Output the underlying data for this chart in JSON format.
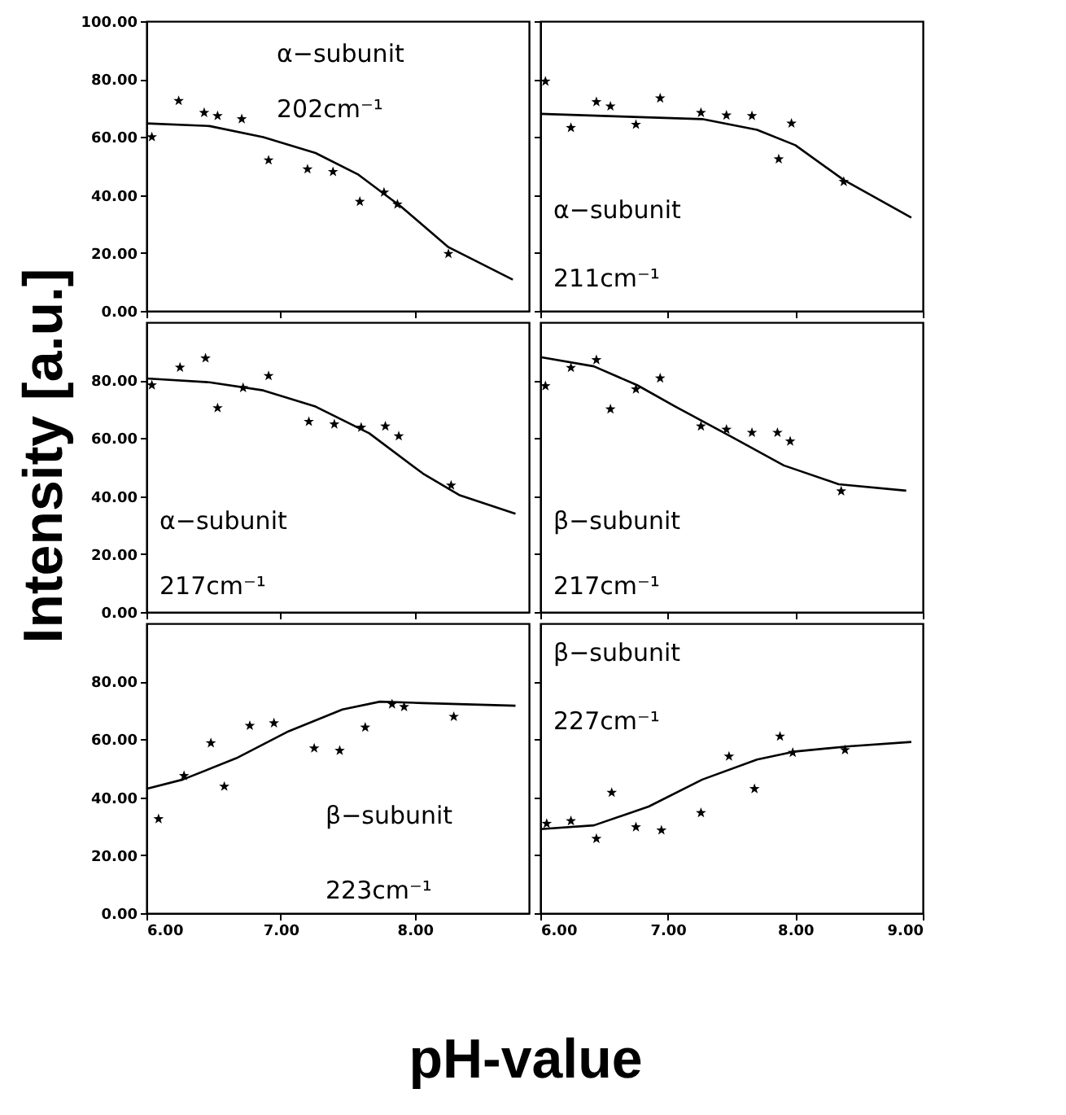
{
  "chart_data": [
    {
      "type": "scatter",
      "xlim": [
        6,
        8.85
      ],
      "ylim": [
        0,
        100
      ],
      "xticks": [
        {
          "value": 6,
          "label": null
        },
        {
          "value": 7,
          "label": null
        },
        {
          "value": 8,
          "label": null
        }
      ],
      "yticks": [
        {
          "value": 0,
          "label": "0.00"
        },
        {
          "value": 20,
          "label": "20.00"
        },
        {
          "value": 40,
          "label": "40.00"
        },
        {
          "value": 60,
          "label": "60.00"
        },
        {
          "value": 80,
          "label": "80.00"
        },
        {
          "value": 100,
          "label": "100.00"
        }
      ],
      "tick_labels": "y",
      "grid": false,
      "annotations": [
        "α−subunit",
        "202cm⁻¹"
      ],
      "series": [
        {
          "type": "scatter",
          "marker": "star",
          "color": "#000000",
          "x": [
            6.04,
            6.24,
            6.43,
            6.53,
            6.71,
            6.91,
            7.2,
            7.39,
            7.59,
            7.77,
            7.87,
            8.25
          ],
          "values": [
            60,
            72.5,
            68.4,
            67.3,
            66.2,
            52,
            48.9,
            48,
            37.7,
            40.9,
            36.8,
            19.7
          ]
        },
        {
          "type": "line",
          "marker": "none",
          "line_style": "solid",
          "color": "#000000",
          "x": [
            6.0,
            6.47,
            6.87,
            7.26,
            7.58,
            7.9,
            8.25,
            8.73
          ],
          "values": [
            64.7,
            63.8,
            60,
            54.5,
            47,
            35.9,
            22,
            10.8
          ]
        }
      ]
    },
    {
      "type": "scatter",
      "xlim": [
        6,
        9
      ],
      "ylim": [
        0,
        100
      ],
      "xticks": [
        {
          "value": 6,
          "label": null
        },
        {
          "value": 7,
          "label": null
        },
        {
          "value": 8,
          "label": null
        },
        {
          "value": 9,
          "label": null
        }
      ],
      "yticks": [
        0,
        20,
        40,
        60,
        80,
        100
      ],
      "tick_labels": false,
      "grid": false,
      "annotations": [
        "α−subunit",
        "211cm⁻¹"
      ],
      "series": [
        {
          "type": "scatter",
          "marker": "star",
          "color": "#000000",
          "x": [
            6.04,
            6.24,
            6.44,
            6.55,
            6.75,
            6.94,
            7.26,
            7.46,
            7.66,
            7.87,
            7.97,
            8.38
          ],
          "values": [
            79.2,
            63.2,
            72.1,
            70.6,
            64.3,
            73.4,
            68.4,
            67.5,
            67.3,
            52.4,
            64.7,
            44.6
          ]
        },
        {
          "type": "line",
          "marker": "none",
          "line_style": "solid",
          "color": "#000000",
          "x": [
            6.0,
            6.63,
            7.27,
            7.7,
            8.0,
            8.38,
            8.91
          ],
          "values": [
            68,
            67.1,
            66.2,
            62.5,
            57.2,
            45.2,
            32.2
          ]
        }
      ]
    },
    {
      "type": "scatter",
      "xlim": [
        6,
        8.85
      ],
      "ylim": [
        0,
        100
      ],
      "xticks": [
        {
          "value": 6,
          "label": null
        },
        {
          "value": 7,
          "label": null
        },
        {
          "value": 8,
          "label": null
        }
      ],
      "yticks": [
        {
          "value": 0,
          "label": "0.00"
        },
        {
          "value": 20,
          "label": "20.00"
        },
        {
          "value": 40,
          "label": "40.00"
        },
        {
          "value": 60,
          "label": "60.00"
        },
        {
          "value": 80,
          "label": "80.00"
        }
      ],
      "tick_labels": "y",
      "grid": false,
      "ylabel": "Intensity [a.u.]",
      "annotations": [
        "α−subunit",
        "217cm⁻¹"
      ],
      "series": [
        {
          "type": "scatter",
          "marker": "star",
          "color": "#000000",
          "x": [
            6.04,
            6.25,
            6.44,
            6.53,
            6.72,
            6.91,
            7.21,
            7.4,
            7.6,
            7.78,
            7.88,
            8.27
          ],
          "values": [
            78.3,
            84.4,
            87.6,
            70.4,
            77.4,
            81.5,
            65.7,
            64.8,
            63.7,
            64.1,
            60.7,
            43.7
          ]
        },
        {
          "type": "line",
          "marker": "none",
          "line_style": "solid",
          "color": "#000000",
          "x": [
            6.0,
            6.47,
            6.87,
            7.26,
            7.66,
            8.06,
            8.33,
            8.75
          ],
          "values": [
            80.6,
            79.3,
            76.5,
            70.9,
            61.7,
            47.8,
            40.4,
            33.9
          ]
        }
      ]
    },
    {
      "type": "scatter",
      "xlim": [
        6,
        9
      ],
      "ylim": [
        0,
        100
      ],
      "xticks": [
        {
          "value": 6,
          "label": null
        },
        {
          "value": 7,
          "label": null
        },
        {
          "value": 8,
          "label": null
        },
        {
          "value": 9,
          "label": null
        }
      ],
      "yticks": [
        0,
        20,
        40,
        60,
        80
      ],
      "tick_labels": false,
      "grid": false,
      "annotations": [
        "β−subunit",
        "217cm⁻¹"
      ],
      "series": [
        {
          "type": "scatter",
          "marker": "star",
          "color": "#000000",
          "x": [
            6.04,
            6.24,
            6.44,
            6.55,
            6.75,
            6.94,
            7.26,
            7.46,
            7.66,
            7.86,
            7.96,
            8.36
          ],
          "values": [
            78,
            84.3,
            87,
            70,
            76.9,
            80.7,
            64.1,
            63,
            61.9,
            61.9,
            58.9,
            41.7
          ]
        },
        {
          "type": "line",
          "marker": "none",
          "line_style": "solid",
          "color": "#000000",
          "x": [
            6.0,
            6.42,
            6.76,
            7.06,
            7.49,
            7.91,
            8.34,
            8.87
          ],
          "values": [
            88,
            84.8,
            78.3,
            70.9,
            60.7,
            50.6,
            44.1,
            41.9
          ]
        }
      ]
    },
    {
      "type": "scatter",
      "xlim": [
        6,
        8.85
      ],
      "ylim": [
        0,
        100
      ],
      "xticks": [
        {
          "value": 6,
          "label": "6.00"
        },
        {
          "value": 7,
          "label": "7.00"
        },
        {
          "value": 8,
          "label": "8.00"
        }
      ],
      "yticks": [
        {
          "value": 0,
          "label": "0.00"
        },
        {
          "value": 20,
          "label": "20.00"
        },
        {
          "value": 40,
          "label": "40.00"
        },
        {
          "value": 60,
          "label": "60.00"
        },
        {
          "value": 80,
          "label": "80.00"
        }
      ],
      "grid": false,
      "xlabel": "pH-value",
      "annotations": [
        "β−subunit",
        "223cm⁻¹"
      ],
      "series": [
        {
          "type": "scatter",
          "marker": "star",
          "color": "#000000",
          "x": [
            6.09,
            6.28,
            6.48,
            6.58,
            6.77,
            6.95,
            7.25,
            7.44,
            7.63,
            7.83,
            7.92,
            8.29
          ],
          "values": [
            32.5,
            47.4,
            58.7,
            43.7,
            64.7,
            65.6,
            56.9,
            56.1,
            64.1,
            72.1,
            71.2,
            67.8
          ]
        },
        {
          "type": "line",
          "marker": "none",
          "line_style": "solid",
          "color": "#000000",
          "x": [
            6.0,
            6.27,
            6.67,
            7.06,
            7.46,
            7.74,
            8.06,
            8.75
          ],
          "values": [
            42.9,
            46.1,
            53.5,
            62.8,
            70.3,
            73,
            72.5,
            71.6
          ]
        }
      ]
    },
    {
      "type": "scatter",
      "xlim": [
        6,
        9
      ],
      "ylim": [
        0,
        100
      ],
      "xticks": [
        {
          "value": 6,
          "label": "6.00"
        },
        {
          "value": 7,
          "label": "7.00"
        },
        {
          "value": 8,
          "label": "8.00"
        },
        {
          "value": 9,
          "label": "9.00"
        }
      ],
      "yticks": [
        0,
        20,
        40,
        60,
        80
      ],
      "tick_labels": "x",
      "grid": false,
      "annotations": [
        "β−subunit",
        "227cm⁻¹"
      ],
      "series": [
        {
          "type": "scatter",
          "marker": "star",
          "color": "#000000",
          "x": [
            6.05,
            6.24,
            6.44,
            6.56,
            6.75,
            6.95,
            7.26,
            7.48,
            7.68,
            7.88,
            7.98,
            8.39
          ],
          "values": [
            30.9,
            31.8,
            25.7,
            41.6,
            29.7,
            28.6,
            34.6,
            54.1,
            42.9,
            61,
            55.4,
            56.3
          ]
        },
        {
          "type": "line",
          "marker": "none",
          "line_style": "solid",
          "color": "#000000",
          "x": [
            6.0,
            6.42,
            6.85,
            7.27,
            7.7,
            8.0,
            8.42,
            8.91
          ],
          "values": [
            29,
            30.3,
            36.8,
            46.1,
            53,
            55.8,
            57.6,
            59.1
          ]
        }
      ]
    }
  ]
}
